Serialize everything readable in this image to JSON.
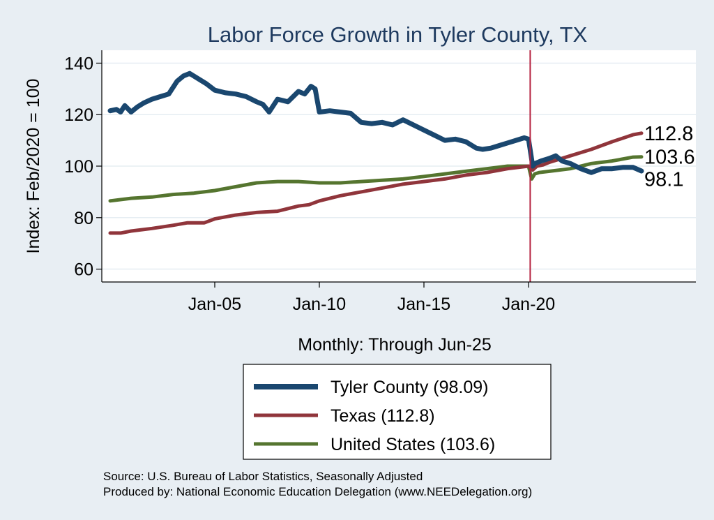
{
  "chart_data": {
    "type": "line",
    "title": "Labor Force Growth in Tyler  County, TX",
    "xlabel": "Monthly: Through Jun-25",
    "ylabel": "Index: Feb/2020 = 100",
    "ylim": [
      55,
      145
    ],
    "yticks": [
      60,
      80,
      100,
      120,
      140
    ],
    "xlim": [
      1999.6,
      2028.0
    ],
    "xticks": [
      {
        "value": 2005.0,
        "label": "Jan-05"
      },
      {
        "value": 2010.0,
        "label": "Jan-10"
      },
      {
        "value": 2015.0,
        "label": "Jan-15"
      },
      {
        "value": 2020.0,
        "label": "Jan-20"
      }
    ],
    "vline": {
      "x": 2020.08,
      "color": "#b5223f"
    },
    "grid": true,
    "series": [
      {
        "name": "Tyler  County",
        "legend": "Tyler  County (98.09)",
        "end_label": "98.1",
        "color": "#1a476f",
        "x": [
          2000.0,
          2000.3,
          2000.5,
          2000.7,
          2001.0,
          2001.3,
          2001.6,
          2002.0,
          2002.4,
          2002.8,
          2003.2,
          2003.5,
          2003.8,
          2004.2,
          2004.6,
          2005.0,
          2005.5,
          2006.0,
          2006.5,
          2007.0,
          2007.3,
          2007.6,
          2008.0,
          2008.5,
          2009.0,
          2009.3,
          2009.6,
          2009.8,
          2010.0,
          2010.5,
          2011.0,
          2011.5,
          2012.0,
          2012.5,
          2013.0,
          2013.5,
          2014.0,
          2014.5,
          2015.0,
          2015.5,
          2016.0,
          2016.5,
          2017.0,
          2017.5,
          2017.8,
          2018.2,
          2018.6,
          2019.0,
          2019.4,
          2019.8,
          2020.0,
          2020.2,
          2020.3,
          2020.6,
          2021.0,
          2021.3,
          2021.6,
          2022.0,
          2022.5,
          2023.0,
          2023.5,
          2024.0,
          2024.5,
          2025.0,
          2025.4
        ],
        "values": [
          121.5,
          122,
          121,
          123.5,
          121,
          123,
          124.5,
          126,
          127,
          128,
          133,
          135,
          136,
          134,
          132,
          129.5,
          128.5,
          128,
          127,
          125,
          124,
          121,
          126,
          125,
          129,
          128,
          131,
          130,
          121,
          121.5,
          121,
          120.5,
          117,
          116.5,
          117,
          116,
          118,
          116,
          114,
          112,
          110,
          110.5,
          109.5,
          107,
          106.5,
          107,
          108,
          109,
          110,
          111,
          110.5,
          100,
          101,
          102,
          103,
          104,
          102,
          101,
          99,
          97.5,
          99,
          99,
          99.5,
          99.5,
          98.1
        ]
      },
      {
        "name": "Texas",
        "legend": "Texas (112.8)",
        "end_label": "112.8",
        "color": "#90353b",
        "x": [
          2000.0,
          2000.5,
          2001.0,
          2002.0,
          2003.0,
          2003.7,
          2004.5,
          2005.0,
          2006.0,
          2007.0,
          2008.0,
          2009.0,
          2009.5,
          2010.0,
          2011.0,
          2012.0,
          2013.0,
          2014.0,
          2015.0,
          2016.0,
          2017.0,
          2018.0,
          2019.0,
          2020.0,
          2020.2,
          2020.4,
          2020.7,
          2021.0,
          2022.0,
          2023.0,
          2024.0,
          2025.0,
          2025.4
        ],
        "values": [
          74,
          74,
          74.8,
          75.8,
          77,
          78,
          78,
          79.5,
          81,
          82,
          82.5,
          84.5,
          85,
          86.5,
          88.5,
          90,
          91.5,
          93,
          94,
          95,
          96.5,
          97.5,
          99,
          100,
          98.5,
          100,
          100.5,
          101.5,
          104,
          106.5,
          109.5,
          112.2,
          112.8
        ]
      },
      {
        "name": "United States",
        "legend": "United States (103.6)",
        "end_label": "103.6",
        "color": "#55752f",
        "x": [
          2000.0,
          2001.0,
          2002.0,
          2003.0,
          2004.0,
          2005.0,
          2006.0,
          2007.0,
          2008.0,
          2009.0,
          2010.0,
          2011.0,
          2012.0,
          2013.0,
          2014.0,
          2015.0,
          2016.0,
          2017.0,
          2018.0,
          2019.0,
          2020.0,
          2020.15,
          2020.3,
          2020.5,
          2021.0,
          2022.0,
          2023.0,
          2024.0,
          2025.0,
          2025.4
        ],
        "values": [
          86.5,
          87.5,
          88,
          89,
          89.5,
          90.5,
          92,
          93.5,
          94,
          94,
          93.5,
          93.5,
          94,
          94.5,
          95,
          96,
          97,
          98,
          99,
          100,
          100,
          95,
          97,
          97.5,
          98,
          99,
          101,
          102,
          103.5,
          103.6
        ]
      }
    ]
  },
  "notes": {
    "source": "Source: U.S. Bureau of Labor Statistics, Seasonally Adjusted",
    "produced_by": "Produced by: National Economic Education Delegation (www.NEEDelegation.org)"
  }
}
